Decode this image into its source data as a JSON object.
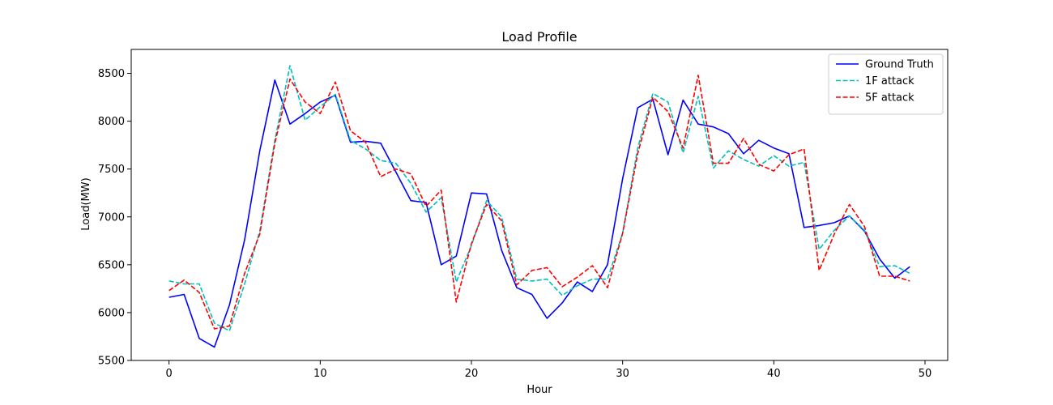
{
  "chart_data": {
    "type": "line",
    "title": "Load Profile",
    "xlabel": "Hour",
    "ylabel": "Load(MW)",
    "xlim": [
      -2.5,
      51.5
    ],
    "ylim": [
      5500,
      8750
    ],
    "xticks": [
      0,
      10,
      20,
      30,
      40,
      50
    ],
    "yticks": [
      5500,
      6000,
      6500,
      7000,
      7500,
      8000,
      8500
    ],
    "grid": false,
    "legend_position": "top-right",
    "x": [
      0,
      1,
      2,
      3,
      4,
      5,
      6,
      7,
      8,
      9,
      10,
      11,
      12,
      13,
      14,
      15,
      16,
      17,
      18,
      19,
      20,
      21,
      22,
      23,
      24,
      25,
      26,
      27,
      28,
      29,
      30,
      31,
      32,
      33,
      34,
      35,
      36,
      37,
      38,
      39,
      40,
      41,
      42,
      43,
      44,
      45,
      46,
      47,
      48,
      49
    ],
    "series": [
      {
        "name": "Ground Truth",
        "color": "#0000ff",
        "dash": "solid",
        "values": [
          6160,
          6190,
          5730,
          5640,
          6080,
          6760,
          7690,
          8430,
          7970,
          8080,
          8200,
          8270,
          7780,
          7790,
          7770,
          7470,
          7170,
          7150,
          6500,
          6590,
          7250,
          7240,
          6650,
          6260,
          6190,
          5940,
          6100,
          6320,
          6220,
          6500,
          7400,
          8140,
          8230,
          7650,
          8220,
          7970,
          7940,
          7870,
          7660,
          7800,
          7720,
          7660,
          6890,
          6910,
          6940,
          7010,
          6850,
          6560,
          6360,
          6480
        ]
      },
      {
        "name": "1F attack",
        "color": "#00bfbf",
        "dash": "dashed",
        "values": [
          6330,
          6300,
          6300,
          5890,
          5810,
          6300,
          6850,
          7800,
          8580,
          8010,
          8150,
          8280,
          7800,
          7710,
          7590,
          7560,
          7350,
          7050,
          7200,
          6320,
          6700,
          7170,
          7000,
          6350,
          6330,
          6350,
          6180,
          6280,
          6350,
          6350,
          6830,
          7720,
          8290,
          8200,
          7670,
          8260,
          7510,
          7690,
          7600,
          7530,
          7640,
          7530,
          7570,
          6660,
          6860,
          7010,
          6860,
          6480,
          6490,
          6410
        ]
      },
      {
        "name": "5F attack",
        "color": "#ff0000",
        "dash": "dashed",
        "values": [
          6230,
          6340,
          6210,
          5830,
          5860,
          6410,
          6820,
          7770,
          8440,
          8200,
          8080,
          8410,
          7900,
          7780,
          7420,
          7500,
          7450,
          7110,
          7280,
          6110,
          6720,
          7130,
          6960,
          6290,
          6440,
          6470,
          6270,
          6370,
          6490,
          6260,
          6830,
          7660,
          8250,
          8100,
          7720,
          8480,
          7560,
          7560,
          7820,
          7550,
          7480,
          7650,
          7710,
          6440,
          6820,
          7130,
          6900,
          6380,
          6380,
          6330
        ]
      }
    ]
  }
}
